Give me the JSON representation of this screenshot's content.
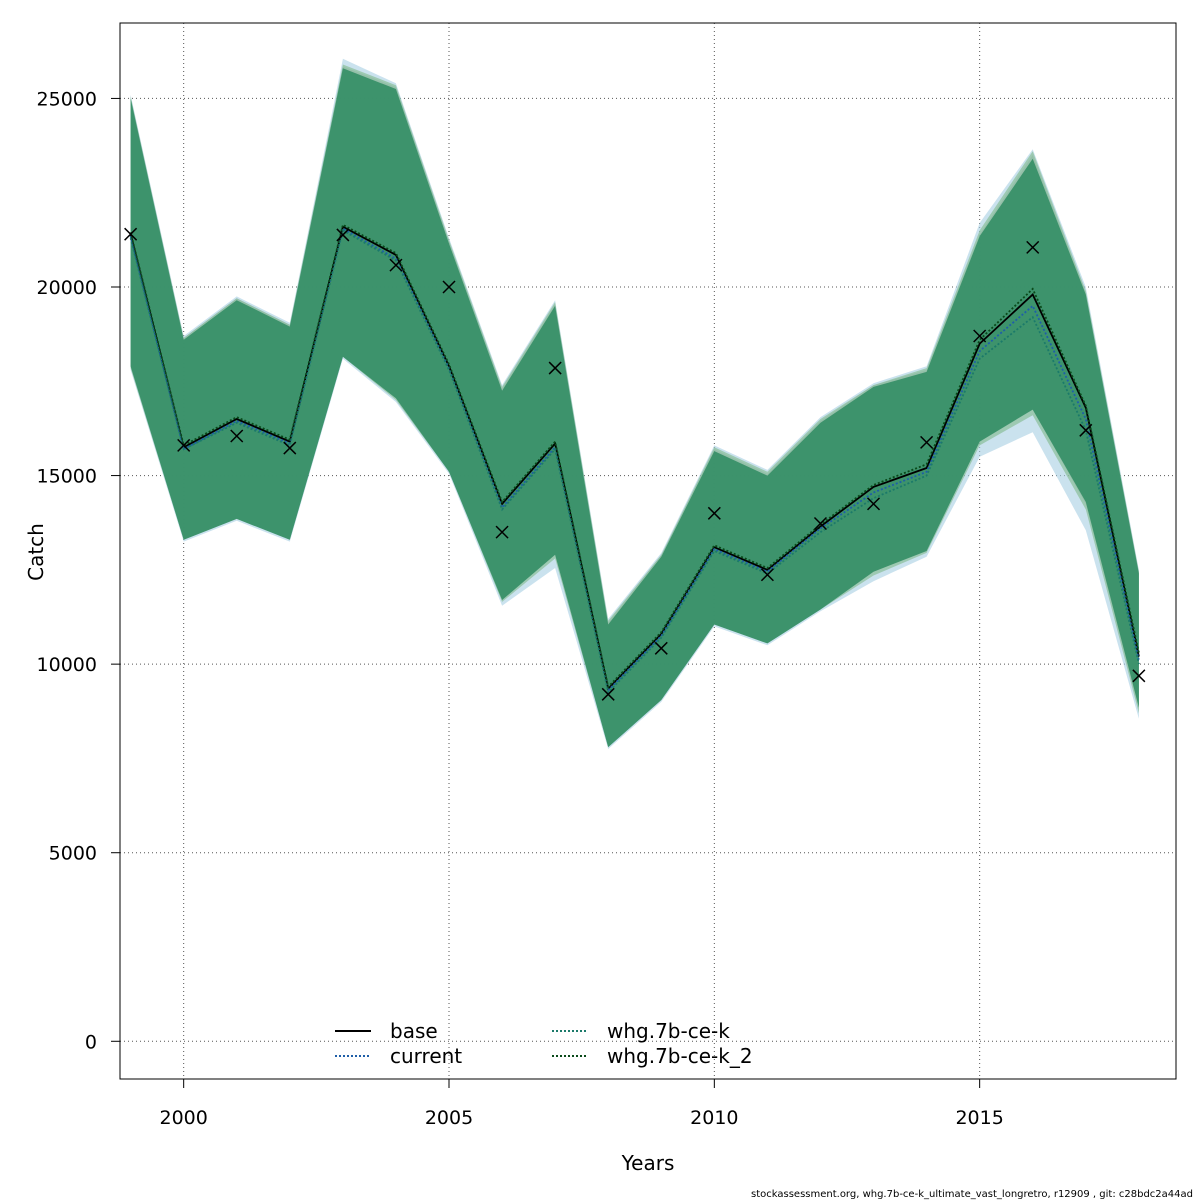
{
  "chart_data": {
    "type": "line",
    "xlabel": "Years",
    "ylabel": "Catch",
    "xlim": [
      1998.8,
      2018.7
    ],
    "ylim": [
      -1000,
      27000
    ],
    "x_ticks": [
      2000,
      2005,
      2010,
      2015
    ],
    "y_ticks": [
      0,
      5000,
      10000,
      15000,
      20000,
      25000
    ],
    "grid": true,
    "legend_placement": "bottom",
    "x": [
      1999,
      2000,
      2001,
      2002,
      2003,
      2004,
      2005,
      2006,
      2007,
      2008,
      2009,
      2010,
      2011,
      2012,
      2013,
      2014,
      2015,
      2016,
      2017,
      2018
    ],
    "observed": {
      "marker": "x",
      "values": [
        21400,
        15800,
        16050,
        15730,
        21380,
        20580,
        20000,
        13500,
        17850,
        9200,
        10420,
        14000,
        12370,
        13730,
        14250,
        15880,
        18700,
        21050,
        16200,
        9690
      ]
    },
    "series": [
      {
        "name": "base",
        "color": "#000000",
        "dash": "solid",
        "values": [
          21400,
          15750,
          16500,
          15900,
          21600,
          20850,
          17900,
          14250,
          15850,
          9350,
          10800,
          13100,
          12500,
          13650,
          14700,
          15200,
          18500,
          19800,
          16800,
          10200
        ],
        "band_low": [
          17900,
          13300,
          13850,
          13300,
          18150,
          17050,
          15100,
          11700,
          12900,
          7800,
          9050,
          11050,
          10550,
          11450,
          12450,
          13000,
          15900,
          16750,
          14250,
          8800
        ],
        "band_high": [
          25050,
          18650,
          19700,
          19000,
          25850,
          25300,
          21200,
          17300,
          19550,
          11100,
          12900,
          15700,
          15050,
          16450,
          17400,
          17800,
          21400,
          23500,
          19850,
          12450
        ],
        "band_color": "#9e9e9e"
      },
      {
        "name": "current",
        "color": "#1f5fa8",
        "dash": "dotted",
        "values": [
          21350,
          15700,
          16450,
          15850,
          21550,
          20750,
          17850,
          14150,
          15750,
          9300,
          10750,
          13050,
          12450,
          13600,
          14550,
          15100,
          18300,
          19500,
          16500,
          10100
        ],
        "band_low": [
          17800,
          13250,
          13800,
          13250,
          18100,
          16950,
          15050,
          11550,
          12550,
          7750,
          9000,
          11000,
          10500,
          11400,
          12200,
          12850,
          15500,
          16150,
          13550,
          8550
        ],
        "band_high": [
          25100,
          18700,
          19750,
          19050,
          26050,
          25400,
          21300,
          17400,
          19650,
          11200,
          12950,
          15800,
          15150,
          16550,
          17450,
          17900,
          21700,
          23650,
          20000,
          12500
        ],
        "band_color": "#a6cee3"
      },
      {
        "name": "whg.7b-ce-k",
        "color": "#1b7a6a",
        "dash": "dotted",
        "values": [
          21300,
          15700,
          16400,
          15800,
          21500,
          20700,
          17800,
          14100,
          15700,
          9250,
          10700,
          13000,
          12400,
          13500,
          14400,
          15000,
          18100,
          19200,
          16200,
          10000
        ],
        "band_low": [
          17850,
          13300,
          13850,
          13300,
          18150,
          17000,
          15100,
          11650,
          12800,
          7800,
          9050,
          11050,
          10550,
          11450,
          12350,
          12950,
          15800,
          16600,
          14100,
          8700
        ],
        "band_high": [
          25050,
          18650,
          19700,
          19000,
          25900,
          25350,
          21250,
          17350,
          19600,
          11150,
          12900,
          15750,
          15100,
          16500,
          17400,
          17850,
          21500,
          23600,
          19900,
          12450
        ],
        "band_color": "#7fb98a"
      },
      {
        "name": "whg.7b-ce-k_2",
        "color": "#0a4a1a",
        "dash": "dotted",
        "values": [
          21450,
          15800,
          16550,
          15950,
          21650,
          20900,
          17950,
          14300,
          15900,
          9400,
          10850,
          13150,
          12550,
          13700,
          14750,
          15300,
          18600,
          19950,
          16850,
          10300
        ],
        "band_low": [
          17900,
          13300,
          13850,
          13300,
          18150,
          17050,
          15100,
          11700,
          12900,
          7800,
          9050,
          11050,
          10550,
          11450,
          12450,
          13000,
          15900,
          16750,
          14300,
          8850
        ],
        "band_high": [
          25000,
          18600,
          19650,
          18950,
          25800,
          25250,
          21150,
          17250,
          19500,
          11050,
          12850,
          15650,
          15000,
          16400,
          17350,
          17750,
          21350,
          23400,
          19800,
          12400
        ],
        "band_color": "#2e8b62"
      }
    ],
    "footnote": "stockassessment.org, whg.7b-ce-k_ultimate_vast_longretro, r12909 , git: c28bdc2a44ad"
  }
}
